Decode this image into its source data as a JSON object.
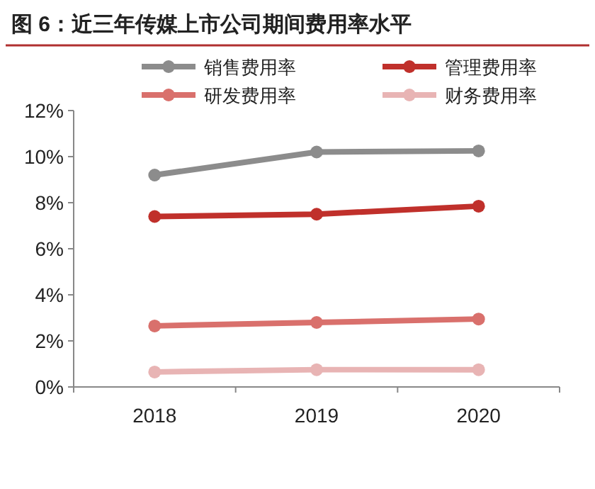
{
  "chart_data": {
    "type": "line",
    "title": "图 6：近三年传媒上市公司期间费用率水平",
    "categories": [
      "2018",
      "2019",
      "2020"
    ],
    "series": [
      {
        "name": "销售费用率",
        "color": "#8c8c8c",
        "values": [
          9.2,
          10.2,
          10.25
        ]
      },
      {
        "name": "管理费用率",
        "color": "#c0302b",
        "values": [
          7.4,
          7.5,
          7.85
        ]
      },
      {
        "name": "研发费用率",
        "color": "#d9706c",
        "values": [
          2.65,
          2.8,
          2.95
        ]
      },
      {
        "name": "财务费用率",
        "color": "#e8b4b4",
        "values": [
          0.65,
          0.75,
          0.75
        ]
      }
    ],
    "ylim": [
      0,
      12
    ],
    "yticks": [
      {
        "value": 0,
        "label": "0%"
      },
      {
        "value": 2,
        "label": "2%"
      },
      {
        "value": 4,
        "label": "4%"
      },
      {
        "value": 6,
        "label": "6%"
      },
      {
        "value": 8,
        "label": "8%"
      },
      {
        "value": 10,
        "label": "10%"
      },
      {
        "value": 12,
        "label": "12%"
      }
    ],
    "legend": "top",
    "marker": "circle",
    "line_style": "solid"
  }
}
